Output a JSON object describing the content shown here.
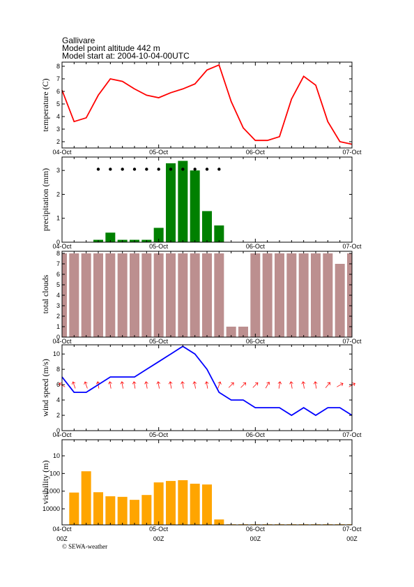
{
  "header": {
    "lines": [
      "Gallivare",
      "Model point altitude  442 m",
      "Model start at: 2004-10-04-00UTC"
    ]
  },
  "footer": "© SEWA-weather",
  "chart_data": [
    {
      "type": "line",
      "ylabel": "temperature (C)",
      "color": "#ff0000",
      "values": [
        6.1,
        3.6,
        3.9,
        5.7,
        7.0,
        6.8,
        6.2,
        5.7,
        5.5,
        5.9,
        6.2,
        6.6,
        7.7,
        8.1,
        5.2,
        3.1,
        2.1,
        2.1,
        2.4,
        5.4,
        7.2,
        6.5,
        3.6,
        2.0,
        1.8
      ],
      "ylim": [
        1.5,
        8.33
      ],
      "yticks": [
        2,
        3,
        4,
        5,
        6,
        7,
        8
      ],
      "xlabels": [
        "04-Oct",
        "05-Oct",
        "06-Oct",
        "07-Oct"
      ]
    },
    {
      "type": "bar",
      "ylabel": "precipitation (mm)",
      "color": "#008000",
      "values": [
        null,
        null,
        null,
        0.1,
        0.4,
        0.1,
        0.1,
        0.1,
        0.6,
        3.3,
        3.4,
        3.0,
        1.3,
        0.7,
        null,
        null,
        null,
        null,
        null,
        null,
        null,
        null,
        null,
        null,
        null
      ],
      "markers": {
        "color": "#000000",
        "values": [
          null,
          null,
          null,
          3.05,
          3.05,
          3.05,
          3.05,
          3.05,
          3.05,
          3.05,
          3.05,
          3.05,
          3.05,
          3.05,
          null,
          null,
          null,
          null,
          null,
          null,
          null,
          null,
          null,
          null,
          null
        ]
      },
      "ylim": [
        0,
        3.56
      ],
      "yticks": [
        0,
        1,
        2,
        3
      ],
      "xlabels": [
        "04-Oct",
        "05-Oct",
        "06-Oct",
        "07-Oct"
      ]
    },
    {
      "type": "bar",
      "ylabel": "total clouds",
      "color": "#bc8f8f",
      "values": [
        8,
        8,
        8,
        8,
        8,
        8,
        8,
        8,
        8,
        8,
        8,
        8,
        8,
        8,
        1,
        1,
        8,
        8,
        8,
        8,
        8,
        8,
        8,
        7,
        8
      ],
      "ylim": [
        0,
        8.2
      ],
      "yticks": [
        0,
        1,
        2,
        3,
        4,
        5,
        6,
        7,
        8
      ],
      "xlabels": [
        "04-Oct",
        "05-Oct",
        "06-Oct",
        "07-Oct"
      ]
    },
    {
      "type": "line",
      "ylabel": "wind speed (m/s)",
      "color": "#0000ff",
      "values": [
        7,
        5,
        5,
        6,
        7,
        7,
        7,
        8,
        9,
        10,
        11,
        10,
        8,
        5,
        4,
        4,
        3,
        3,
        3,
        2,
        3,
        2,
        3,
        3,
        2
      ],
      "arrows": {
        "color": "#ff0000",
        "values": [
          300,
          340,
          340,
          350,
          350,
          350,
          350,
          350,
          350,
          350,
          350,
          350,
          350,
          20,
          45,
          45,
          45,
          30,
          10,
          350,
          350,
          350,
          40,
          60,
          60
        ]
      },
      "ylim": [
        0,
        11.2
      ],
      "yticks": [
        0,
        2,
        4,
        6,
        8,
        10
      ],
      "xlabels": [
        "04-Oct",
        "05-Oct",
        "06-Oct",
        "07-Oct"
      ]
    },
    {
      "type": "bar",
      "ylabel": "visibility (m)",
      "color": "#ffa500",
      "log": true,
      "y_inverted": true,
      "values": [
        null,
        1200,
        75,
        1150,
        1950,
        2100,
        3100,
        1650,
        320,
        265,
        240,
        380,
        420,
        40000,
        75000,
        75000,
        75000,
        75000,
        75000,
        75000,
        75000,
        75000,
        75000,
        75000,
        75000
      ],
      "ylim": [
        1.23,
        81000
      ],
      "yticks": [
        10,
        100,
        1000,
        10000
      ],
      "xlabels": [
        "04-Oct",
        "05-Oct",
        "06-Oct",
        "07-Oct"
      ],
      "xsublabels": [
        "00Z",
        "00Z",
        "00Z",
        "00Z"
      ]
    }
  ]
}
